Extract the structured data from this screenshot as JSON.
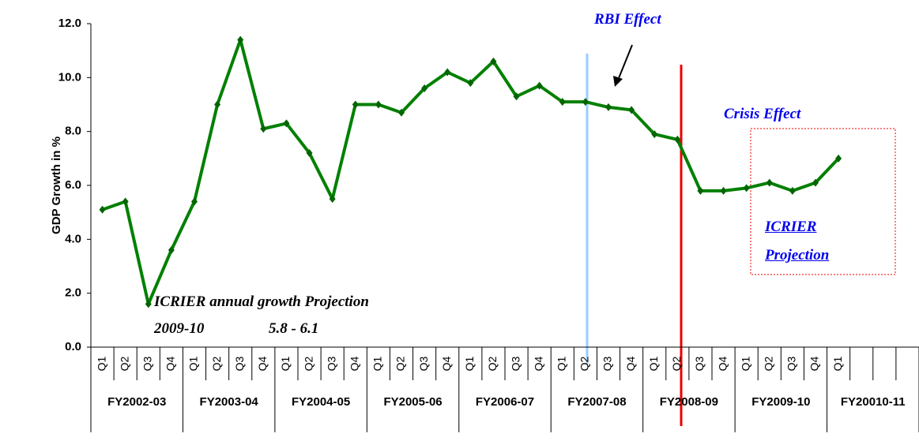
{
  "chart_data": {
    "type": "line",
    "y_label": "GDP Growth in %",
    "categories": [
      "Q1",
      "Q2",
      "Q3",
      "Q4",
      "Q1",
      "Q2",
      "Q3",
      "Q4",
      "Q1",
      "Q2",
      "Q3",
      "Q4",
      "Q1",
      "Q2",
      "Q3",
      "Q4",
      "Q1",
      "Q2",
      "Q3",
      "Q4",
      "Q1",
      "Q2",
      "Q3",
      "Q4",
      "Q1",
      "Q2",
      "Q3",
      "Q4",
      "Q1",
      "Q2",
      "Q3",
      "Q4",
      "Q1",
      null,
      null,
      null
    ],
    "groups": [
      "FY2002-03",
      "FY2003-04",
      "FY2004-05",
      "FY2005-06",
      "FY2006-07",
      "FY2007-08",
      "FY2008-09",
      "FY2009-10",
      "FY20010-11"
    ],
    "series": [
      {
        "name": "GDP Growth",
        "color": "#008000",
        "values": [
          5.1,
          5.4,
          1.6,
          3.6,
          5.4,
          9.0,
          11.4,
          8.1,
          8.3,
          7.2,
          5.5,
          9.0,
          9.0,
          8.7,
          9.6,
          10.2,
          9.8,
          10.6,
          9.3,
          9.7,
          9.1,
          9.1,
          8.9,
          8.8,
          7.9,
          7.7,
          5.8,
          5.8,
          5.9,
          6.1,
          5.8,
          6.1,
          7.0,
          null,
          null,
          null
        ]
      }
    ],
    "ylim": [
      0,
      12
    ],
    "yticks": [
      {
        "value": 0,
        "label": "0.0"
      },
      {
        "value": 2,
        "label": "2.0"
      },
      {
        "value": 4,
        "label": "4.0"
      },
      {
        "value": 6,
        "label": "6.0"
      },
      {
        "value": 8,
        "label": "8.0"
      },
      {
        "value": 10,
        "label": "10.0"
      },
      {
        "value": 12,
        "label": "12.0"
      }
    ],
    "annotations": {
      "rbi": "RBI Effect",
      "crisis": "Crisis Effect",
      "projection": "ICRIER Projection",
      "annual": "ICRIER annual growth Projection",
      "year": "2009-10",
      "range": "5.8 - 6.1"
    }
  }
}
